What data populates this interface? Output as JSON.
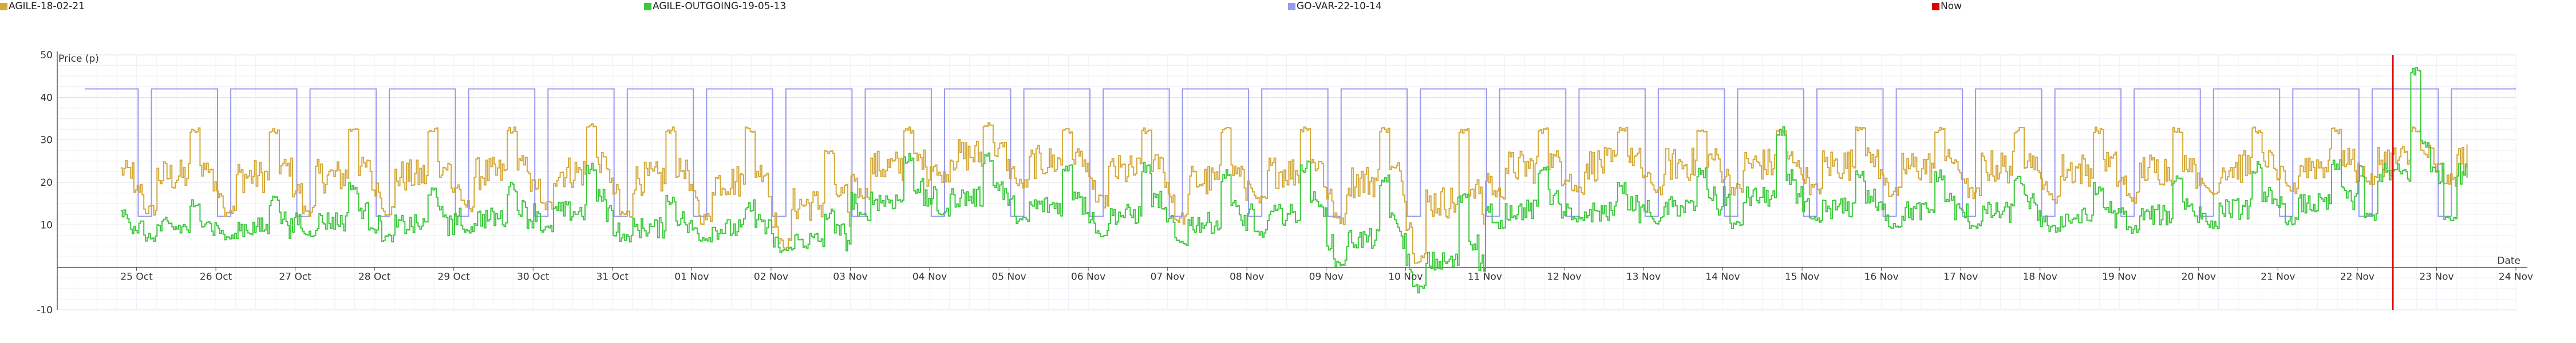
{
  "chart_data": {
    "type": "line",
    "title": "",
    "ylabel": "Price (p)",
    "xlabel": "Date",
    "ylim": [
      -10,
      50
    ],
    "yticks": [
      -10,
      10,
      20,
      30,
      40,
      50
    ],
    "grid": true,
    "legend_position": "top",
    "x_range_days": [
      24,
      55
    ],
    "x_ticks": [
      "25 Oct",
      "26 Oct",
      "27 Oct",
      "28 Oct",
      "29 Oct",
      "30 Oct",
      "31 Oct",
      "01 Nov",
      "02 Nov",
      "03 Nov",
      "04 Nov",
      "05 Nov",
      "06 Nov",
      "07 Nov",
      "08 Nov",
      "09 Nov",
      "10 Nov",
      "11 Nov",
      "12 Nov",
      "13 Nov",
      "14 Nov",
      "15 Nov",
      "16 Nov",
      "17 Nov",
      "18 Nov",
      "19 Nov",
      "20 Nov",
      "21 Nov",
      "22 Nov",
      "23 Nov",
      "24 Nov"
    ],
    "now_day": 53.45,
    "series": [
      {
        "name": "AGILE-18-02-21",
        "color": "#d4a93a",
        "step": "half-hour",
        "daily_profile": {
          "night_base": 13,
          "peak_16_19": 33,
          "evening_20_23": 24
        },
        "daily_peaks": [
          33,
          33,
          33,
          33,
          33,
          33,
          34,
          33,
          33,
          28,
          33,
          34,
          33,
          33,
          33,
          33,
          33,
          33,
          33,
          33,
          33,
          33,
          33,
          33,
          33,
          33,
          33,
          33,
          33,
          33
        ],
        "daily_lows": [
          10,
          12,
          12,
          12,
          12,
          13,
          13,
          11,
          10,
          4,
          16,
          20,
          18,
          14,
          10,
          14,
          10,
          1,
          16,
          17,
          17,
          17,
          17,
          16,
          16,
          15,
          15,
          16,
          17,
          19
        ]
      },
      {
        "name": "AGILE-OUTGOING-19-05-13",
        "color": "#3cc83c",
        "step": "half-hour",
        "daily_peaks": [
          19,
          17,
          17,
          20,
          19,
          20,
          25,
          17,
          16,
          14,
          27,
          27,
          25,
          25,
          23,
          25,
          22,
          18,
          24,
          20,
          24,
          34,
          23,
          23,
          22,
          20,
          22,
          25,
          26,
          48
        ],
        "daily_lows": [
          6,
          6,
          6,
          7,
          6,
          8,
          8,
          6,
          6,
          3,
          11,
          12,
          10,
          7,
          5,
          7,
          0,
          -6,
          9,
          10,
          10,
          9,
          10,
          9,
          9,
          8,
          8,
          9,
          10,
          11
        ]
      },
      {
        "name": "GO-VAR-22-10-14",
        "color": "#9999ee",
        "step": "day",
        "description_values": {
          "high": 42,
          "low": 12
        },
        "low_window_hours": [
          0.5,
          4.5
        ]
      },
      {
        "name": "Now",
        "color": "#dd0000",
        "type": "vertical-marker"
      }
    ]
  }
}
